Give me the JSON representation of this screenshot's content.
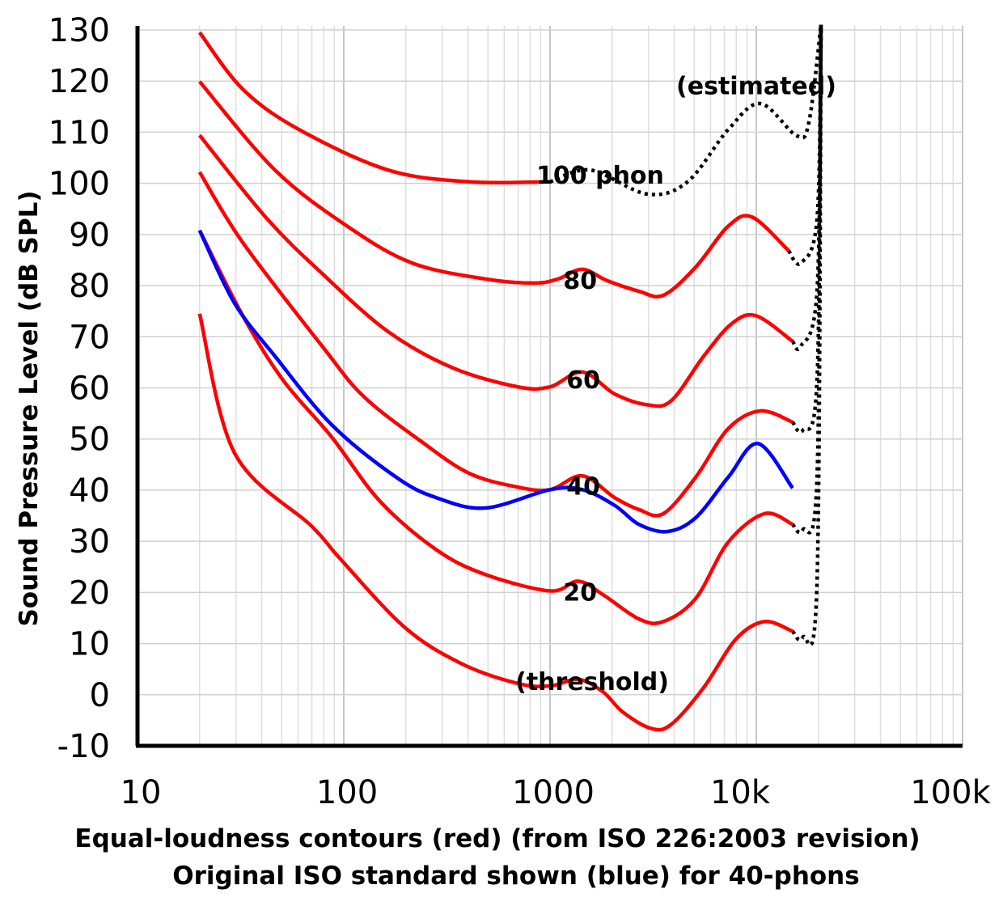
{
  "chart_data": {
    "type": "line",
    "title": "",
    "xlabel": [
      "Equal-loudness contours (red) (from ISO 226:2003 revision)",
      "Original ISO standard shown (blue) for 40-phons"
    ],
    "ylabel": "Sound Pressure Level (dB SPL)",
    "xscale": "log",
    "xlim": [
      10,
      100000
    ],
    "ylim": [
      -10,
      130
    ],
    "grid": true,
    "x_ticks": [
      {
        "value": 10,
        "label": "10"
      },
      {
        "value": 100,
        "label": "100"
      },
      {
        "value": 1000,
        "label": "1000"
      },
      {
        "value": 10000,
        "label": "10k"
      },
      {
        "value": 100000,
        "label": "100k"
      }
    ],
    "y_ticks": [
      130,
      120,
      110,
      100,
      90,
      80,
      70,
      60,
      50,
      40,
      30,
      20,
      10,
      0,
      -10
    ],
    "colors": {
      "red": "#ff0000",
      "blue": "#0000ff",
      "estimated": "#000000"
    },
    "series": [
      {
        "id": "threshold",
        "color": "#ff0000",
        "style": "solid",
        "points": [
          [
            20,
            74.5
          ],
          [
            29.6,
            47.2
          ],
          [
            69.7,
            33
          ],
          [
            95.5,
            26.7
          ],
          [
            197,
            13.2
          ],
          [
            371,
            6.1
          ],
          [
            697,
            2.2
          ],
          [
            1000,
            1.7
          ],
          [
            1371,
            3
          ],
          [
            1800,
            0.6
          ],
          [
            2255,
            -3.4
          ],
          [
            3093,
            -6.6
          ],
          [
            3873,
            -5.8
          ],
          [
            5560,
            1.4
          ],
          [
            7980,
            10.9
          ],
          [
            10960,
            14.3
          ],
          [
            15000,
            12.4
          ]
        ]
      },
      {
        "id": "20-phon",
        "color": "#ff0000",
        "style": "solid",
        "points": [
          [
            20,
            90.8
          ],
          [
            32.4,
            74.1
          ],
          [
            50.8,
            61.5
          ],
          [
            87.3,
            50.4
          ],
          [
            150,
            37.8
          ],
          [
            282,
            28.3
          ],
          [
            486,
            23.5
          ],
          [
            1000,
            20.3
          ],
          [
            1371,
            22.2
          ],
          [
            1800,
            19.6
          ],
          [
            2698,
            14.8
          ],
          [
            3540,
            14.3
          ],
          [
            5080,
            18.8
          ],
          [
            7300,
            29.8
          ],
          [
            10960,
            35.4
          ],
          [
            15000,
            33.3
          ]
        ]
      },
      {
        "id": "40-phon",
        "color": "#ff0000",
        "style": "solid",
        "points": [
          [
            20,
            102.2
          ],
          [
            32.4,
            88.4
          ],
          [
            79.8,
            67.8
          ],
          [
            125,
            58.3
          ],
          [
            236,
            49.6
          ],
          [
            405,
            43.3
          ],
          [
            697,
            40.6
          ],
          [
            1000,
            40.1
          ],
          [
            1436,
            42.8
          ],
          [
            2061,
            38.5
          ],
          [
            2698,
            36.2
          ],
          [
            3540,
            35.4
          ],
          [
            5080,
            42.5
          ],
          [
            7300,
            52
          ],
          [
            10470,
            55.5
          ],
          [
            15000,
            53.3
          ]
        ]
      },
      {
        "id": "60-phon",
        "color": "#ff0000",
        "style": "solid",
        "points": [
          [
            20,
            109.4
          ],
          [
            42.4,
            93.1
          ],
          [
            79.8,
            82.1
          ],
          [
            164,
            71
          ],
          [
            338,
            63.9
          ],
          [
            697,
            60.2
          ],
          [
            1000,
            60.2
          ],
          [
            1436,
            63.1
          ],
          [
            2061,
            58.8
          ],
          [
            2958,
            56.7
          ],
          [
            3873,
            57.5
          ],
          [
            5560,
            66.2
          ],
          [
            7620,
            72.6
          ],
          [
            9990,
            74.1
          ],
          [
            15000,
            69.1
          ]
        ]
      },
      {
        "id": "80-phon",
        "color": "#ff0000",
        "style": "solid",
        "points": [
          [
            20,
            119.9
          ],
          [
            46.4,
            102.6
          ],
          [
            105,
            91.5
          ],
          [
            215,
            84.4
          ],
          [
            486,
            81.3
          ],
          [
            836,
            80.5
          ],
          [
            1094,
            81.3
          ],
          [
            1436,
            83.2
          ],
          [
            1884,
            81
          ],
          [
            2698,
            78.9
          ],
          [
            3540,
            78.1
          ],
          [
            5080,
            83.6
          ],
          [
            7300,
            91.6
          ],
          [
            9550,
            93.4
          ],
          [
            14360,
            86.8
          ]
        ]
      },
      {
        "id": "100-phon",
        "color": "#ff0000",
        "style": "solid",
        "points": [
          [
            20,
            129.5
          ],
          [
            32.4,
            118.4
          ],
          [
            60.8,
            110.5
          ],
          [
            164,
            102.6
          ],
          [
            405,
            100.3
          ],
          [
            1000,
            100.3
          ]
        ]
      },
      {
        "id": "100-phon-estimated",
        "color": "#000000",
        "style": "dotted",
        "points": [
          [
            1000,
            100.3
          ],
          [
            1570,
            102.6
          ],
          [
            2958,
            97.9
          ],
          [
            4640,
            100.3
          ],
          [
            7300,
            110.5
          ],
          [
            10470,
            115.6
          ],
          [
            15700,
            109.3
          ],
          [
            18000,
            112
          ],
          [
            20600,
            131
          ]
        ]
      },
      {
        "id": "80-phon-estimated",
        "color": "#000000",
        "style": "dotted",
        "points": [
          [
            14360,
            86.8
          ],
          [
            16400,
            84.4
          ],
          [
            19700,
            93
          ],
          [
            20600,
            131
          ]
        ]
      },
      {
        "id": "60-phon-estimated",
        "color": "#000000",
        "style": "dotted",
        "points": [
          [
            15000,
            69.1
          ],
          [
            16400,
            68.1
          ],
          [
            19700,
            78.9
          ],
          [
            20600,
            131
          ]
        ]
      },
      {
        "id": "40-phon-estimated",
        "color": "#000000",
        "style": "dotted",
        "points": [
          [
            15000,
            53.3
          ],
          [
            16800,
            51.7
          ],
          [
            19700,
            61.5
          ],
          [
            20600,
            131
          ]
        ]
      },
      {
        "id": "20-phon-estimated",
        "color": "#000000",
        "style": "dotted",
        "points": [
          [
            15000,
            33.3
          ],
          [
            16800,
            32.2
          ],
          [
            19700,
            42.5
          ],
          [
            20600,
            131
          ]
        ]
      },
      {
        "id": "threshold-estimated",
        "color": "#000000",
        "style": "dotted",
        "points": [
          [
            15000,
            12.4
          ],
          [
            16800,
            11.2
          ],
          [
            19700,
            22
          ],
          [
            20600,
            131
          ]
        ]
      },
      {
        "id": "original-40-phon",
        "color": "#0000ff",
        "style": "solid",
        "points": [
          [
            20,
            90.8
          ],
          [
            29.6,
            76.5
          ],
          [
            46.4,
            66.2
          ],
          [
            87.3,
            52.8
          ],
          [
            180,
            42.5
          ],
          [
            282,
            38.5
          ],
          [
            486,
            36.5
          ],
          [
            1000,
            40.1
          ],
          [
            1436,
            40.1
          ],
          [
            2061,
            37
          ],
          [
            2698,
            33.3
          ],
          [
            3700,
            31.9
          ],
          [
            5080,
            34.6
          ],
          [
            7300,
            42.5
          ],
          [
            10200,
            49.1
          ],
          [
            15000,
            40.4
          ]
        ]
      }
    ],
    "annotations": [
      {
        "text": "(estimated)",
        "x": 10000,
        "y": 119
      },
      {
        "text": "100 phon",
        "x": 1750,
        "y": 101.5
      },
      {
        "text": "80",
        "x": 1400,
        "y": 81
      },
      {
        "text": "60",
        "x": 1450,
        "y": 61.5
      },
      {
        "text": "40",
        "x": 1450,
        "y": 40.7
      },
      {
        "text": "20",
        "x": 1400,
        "y": 20
      },
      {
        "text": "(threshold)",
        "x": 1600,
        "y": 2.5
      }
    ]
  }
}
